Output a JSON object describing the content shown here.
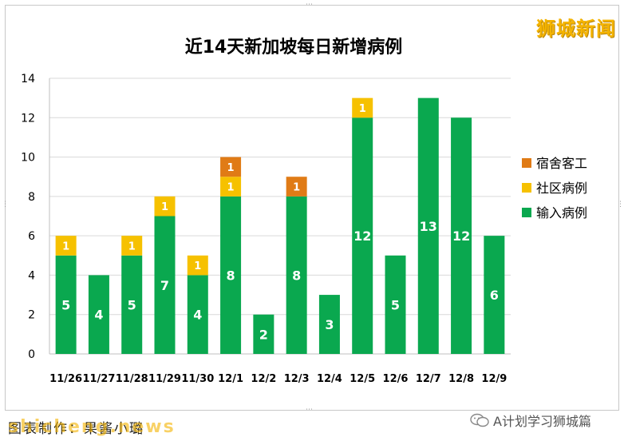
{
  "watermark": "狮城新闻",
  "footer": {
    "credit": "图表制作：果酱小璐",
    "logo_text": "shicheng.news",
    "account": "A计划学习狮城篇"
  },
  "icons": {
    "account_icon": "wechat-icon"
  },
  "colors": {
    "imported": "#0aa84f",
    "community": "#f6c100",
    "dormitory": "#e07b16",
    "background": "#ffffff",
    "grid": "#d9d9d9"
  },
  "chart_data": {
    "type": "bar",
    "stacked": true,
    "title": "近14天新加坡每日新增病例",
    "categories": [
      "11/26",
      "11/27",
      "11/28",
      "11/29",
      "11/30",
      "12/1",
      "12/2",
      "12/3",
      "12/4",
      "12/5",
      "12/6",
      "12/7",
      "12/8",
      "12/9"
    ],
    "series": [
      {
        "name": "输入病例",
        "color": "#0aa84f",
        "values": [
          5,
          4,
          5,
          7,
          4,
          8,
          2,
          8,
          3,
          12,
          5,
          13,
          12,
          6
        ]
      },
      {
        "name": "社区病例",
        "color": "#f6c100",
        "values": [
          1,
          0,
          1,
          1,
          1,
          1,
          0,
          0,
          0,
          1,
          0,
          0,
          0,
          0
        ]
      },
      {
        "name": "宿舍客工",
        "color": "#e07b16",
        "values": [
          0,
          0,
          0,
          0,
          0,
          1,
          0,
          1,
          0,
          0,
          0,
          0,
          0,
          0
        ]
      }
    ],
    "y_ticks": [
      0,
      2,
      4,
      6,
      8,
      10,
      12,
      14
    ],
    "ylim": [
      0,
      14
    ],
    "grid": true,
    "legend": {
      "position": "right",
      "order": [
        "宿舍客工",
        "社区病例",
        "输入病例"
      ]
    }
  }
}
